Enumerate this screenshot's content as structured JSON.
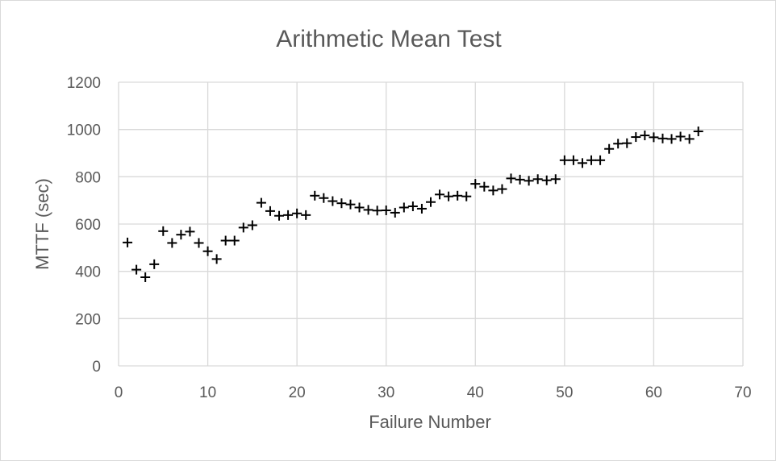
{
  "chart_data": {
    "type": "scatter",
    "title": "Arithmetic Mean Test",
    "xlabel": "Failure Number",
    "ylabel": "MTTF (sec)",
    "xlim": [
      0,
      70
    ],
    "ylim": [
      0,
      1200
    ],
    "x_ticks": [
      0,
      10,
      20,
      30,
      40,
      50,
      60,
      70
    ],
    "y_ticks": [
      0,
      200,
      400,
      600,
      800,
      1000,
      1200
    ],
    "grid": true,
    "legend": "none",
    "marker": "plus",
    "marker_color": "#000000",
    "series": [
      {
        "x": [
          1,
          2,
          3,
          4,
          5,
          6,
          7,
          8,
          9,
          10,
          11,
          12,
          13,
          14,
          15,
          16,
          17,
          18,
          19,
          20,
          21,
          22,
          23,
          24,
          25,
          26,
          27,
          28,
          29,
          30,
          31,
          32,
          33,
          34,
          35,
          36,
          37,
          38,
          39,
          40,
          41,
          42,
          43,
          44,
          45,
          46,
          47,
          48,
          49,
          50,
          51,
          52,
          53,
          54,
          55,
          56,
          57,
          58,
          59,
          60,
          61,
          62,
          63,
          64,
          65
        ],
        "y": [
          522,
          407,
          375,
          430,
          570,
          520,
          555,
          568,
          520,
          485,
          452,
          530,
          530,
          585,
          595,
          690,
          655,
          635,
          638,
          645,
          638,
          720,
          710,
          697,
          688,
          683,
          670,
          660,
          657,
          658,
          648,
          670,
          675,
          665,
          693,
          725,
          717,
          720,
          717,
          770,
          758,
          742,
          748,
          793,
          788,
          783,
          790,
          785,
          790,
          870,
          870,
          858,
          870,
          870,
          918,
          940,
          942,
          968,
          975,
          967,
          962,
          960,
          970,
          960,
          992
        ]
      }
    ]
  }
}
